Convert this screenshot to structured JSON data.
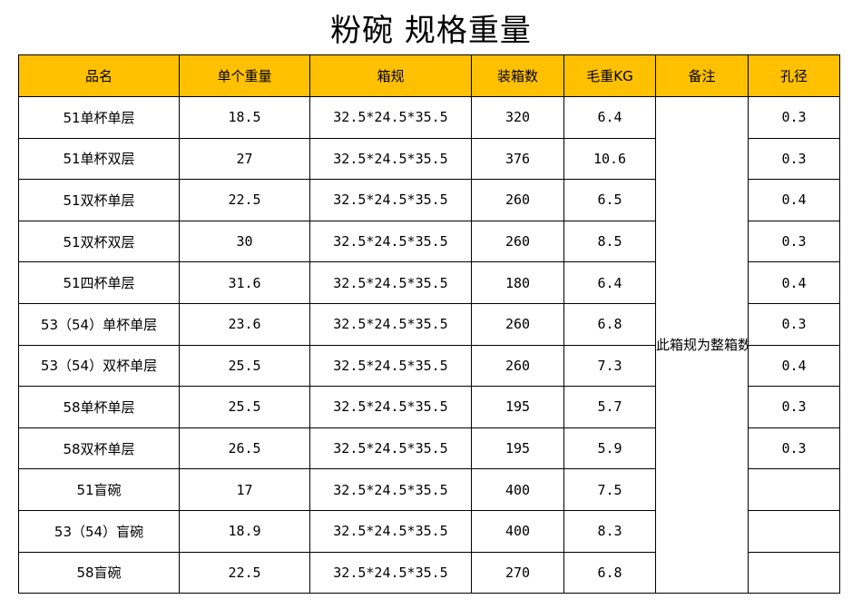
{
  "title": "粉碗  规格重量",
  "headers": [
    "品名",
    "单个重量",
    "箱规",
    "装箱数",
    "毛重KG",
    "备注",
    "孔径"
  ],
  "note": "此箱规为整箱数无独立包装",
  "rows": [
    {
      "name": "51单杯单层",
      "weight": "18.5",
      "box": "32.5*24.5*35.5",
      "count": "320",
      "gross": "6.4",
      "hole": "0.3"
    },
    {
      "name": "51单杯双层",
      "weight": "27",
      "box": "32.5*24.5*35.5",
      "count": "376",
      "gross": "10.6",
      "hole": "0.3"
    },
    {
      "name": "51双杯单层",
      "weight": "22.5",
      "box": "32.5*24.5*35.5",
      "count": "260",
      "gross": "6.5",
      "hole": "0.4"
    },
    {
      "name": "51双杯双层",
      "weight": "30",
      "box": "32.5*24.5*35.5",
      "count": "260",
      "gross": "8.5",
      "hole": "0.3"
    },
    {
      "name": "51四杯单层",
      "weight": "31.6",
      "box": "32.5*24.5*35.5",
      "count": "180",
      "gross": "6.4",
      "hole": "0.4"
    },
    {
      "name": "53（54）单杯单层",
      "weight": "23.6",
      "box": "32.5*24.5*35.5",
      "count": "260",
      "gross": "6.8",
      "hole": "0.3"
    },
    {
      "name": "53（54）双杯单层",
      "weight": "25.5",
      "box": "32.5*24.5*35.5",
      "count": "260",
      "gross": "7.3",
      "hole": "0.4"
    },
    {
      "name": "58单杯单层",
      "weight": "25.5",
      "box": "32.5*24.5*35.5",
      "count": "195",
      "gross": "5.7",
      "hole": "0.3"
    },
    {
      "name": "58双杯单层",
      "weight": "26.5",
      "box": "32.5*24.5*35.5",
      "count": "195",
      "gross": "5.9",
      "hole": "0.3"
    },
    {
      "name": "51盲碗",
      "weight": "17",
      "box": "32.5*24.5*35.5",
      "count": "400",
      "gross": "7.5",
      "hole": ""
    },
    {
      "name": "53（54）盲碗",
      "weight": "18.9",
      "box": "32.5*24.5*35.5",
      "count": "400",
      "gross": "8.3",
      "hole": ""
    },
    {
      "name": "58盲碗",
      "weight": "22.5",
      "box": "32.5*24.5*35.5",
      "count": "270",
      "gross": "6.8",
      "hole": ""
    }
  ]
}
